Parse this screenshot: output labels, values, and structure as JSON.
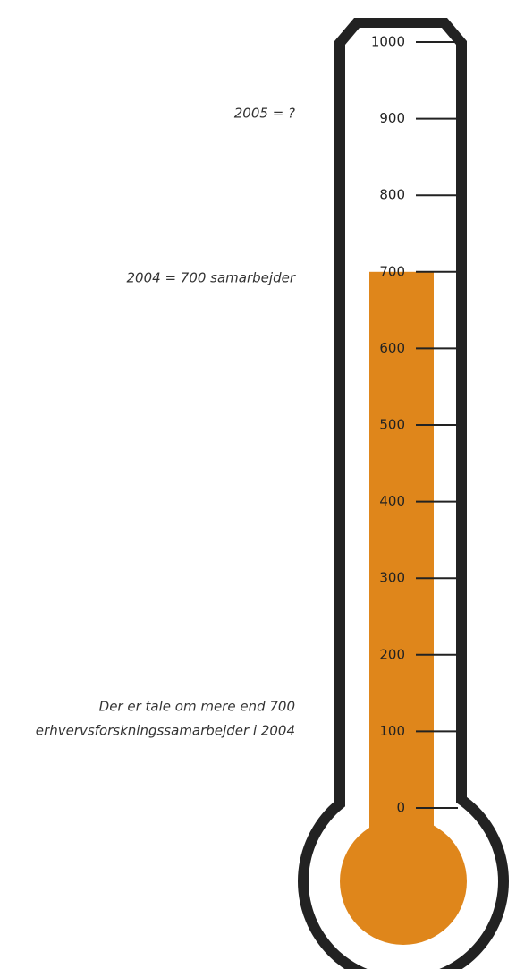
{
  "chart_data": {
    "type": "thermometer",
    "value": 700,
    "color": "#df861b",
    "ylim": [
      0,
      1000
    ],
    "yticks": [
      0,
      100,
      200,
      300,
      400,
      500,
      600,
      700,
      800,
      900,
      1000
    ],
    "annotations": [
      "2005 = ?",
      "2004 = 700 samarbejder",
      "Der er tale om mere end 700",
      "erhvervsforskningssamarbejder i 2004"
    ]
  }
}
